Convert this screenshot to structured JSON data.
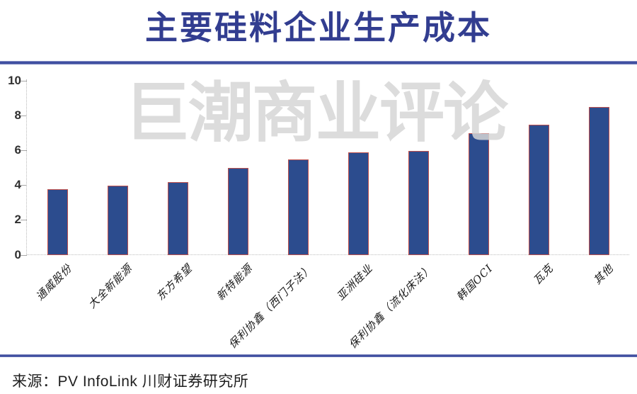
{
  "page": {
    "background": "#ffffff"
  },
  "header": {
    "title": "主要硅料企业生产成本",
    "title_color": "#323d90",
    "rule_color": "#3a4a9e"
  },
  "watermark": {
    "text": "巨潮商业评论",
    "color": "#d6d6d6"
  },
  "chart_data": {
    "type": "bar",
    "title": "主要硅料企业生产成本",
    "categories": [
      "通威股份",
      "大全新能源",
      "东方希望",
      "新特能源",
      "保利协鑫（西门子法）",
      "亚洲硅业",
      "保利协鑫（流化床法）",
      "韩国OCI",
      "瓦克",
      "其他"
    ],
    "values": [
      3.8,
      4.0,
      4.2,
      5.0,
      5.5,
      5.9,
      6.0,
      7.0,
      7.5,
      8.5
    ],
    "xlabel": "",
    "ylabel": "",
    "ylim": [
      0,
      10
    ],
    "yticks": [
      0,
      2,
      4,
      6,
      8,
      10
    ],
    "grid": false,
    "legend_position": "none",
    "bar_fill_color": "#2c4c8e",
    "bar_border_color": "#c0504d",
    "axis_color": "#b8b8b8",
    "tick_label_color": "#303030"
  },
  "footer": {
    "source": "来源：PV InfoLink  川财证券研究所",
    "rule_color": "#3a4a9e"
  }
}
